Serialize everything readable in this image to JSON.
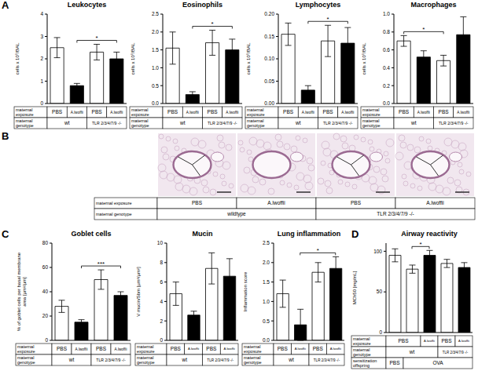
{
  "chart_data": [
    {
      "type": "bar",
      "panel": "A",
      "title": "Leukocytes",
      "ylabel": "cells x 10⁵/BAL",
      "categories": [
        null,
        null,
        null,
        null
      ],
      "values": [
        2.5,
        0.8,
        2.3,
        2.0
      ],
      "errors": [
        0.45,
        0.1,
        0.35,
        0.3
      ],
      "colors": [
        "#ffffff",
        "#000000",
        "#ffffff",
        "#000000"
      ],
      "ylim": [
        0,
        4
      ],
      "yticks": [
        0,
        1,
        2,
        3,
        4
      ],
      "significance": [
        {
          "from": 1,
          "to": 3,
          "label": "*"
        }
      ],
      "table": [
        {
          "label": "maternal exposure",
          "cells": [
            {
              "text": "PBS",
              "span": 1
            },
            {
              "text": "A.lwoffii",
              "span": 1
            },
            {
              "text": "PBS",
              "span": 1
            },
            {
              "text": "A.lwoffii",
              "span": 1
            }
          ]
        },
        {
          "label": "maternal genotype",
          "cells": [
            {
              "text": "wt",
              "span": 2
            },
            {
              "text": "TLR 2/3/4/7/9 -/-",
              "span": 2
            }
          ]
        }
      ]
    },
    {
      "type": "bar",
      "title": "Eosinophils",
      "ylabel": "cells x 10⁵/BAL",
      "categories": [
        null,
        null,
        null,
        null
      ],
      "values": [
        1.55,
        0.25,
        1.7,
        1.5
      ],
      "errors": [
        0.45,
        0.08,
        0.35,
        0.3
      ],
      "colors": [
        "#ffffff",
        "#000000",
        "#ffffff",
        "#000000"
      ],
      "ylim": [
        0,
        2.5
      ],
      "yticks": [
        {
          "value": 0,
          "label": "0.0"
        },
        0.5,
        {
          "value": 1,
          "label": "1.0"
        },
        1.5,
        {
          "value": 2,
          "label": "2.0"
        },
        2.5
      ],
      "significance": [
        {
          "from": 1,
          "to": 3,
          "label": "*"
        }
      ],
      "table": [
        {
          "label": "maternal exposure",
          "cells": [
            {
              "text": "PBS",
              "span": 1
            },
            {
              "text": "A.lwoffii",
              "span": 1
            },
            {
              "text": "PBS",
              "span": 1
            },
            {
              "text": "A.lwoffii",
              "span": 1
            }
          ]
        },
        {
          "label": "maternal genotype",
          "cells": [
            {
              "text": "wt",
              "span": 2
            },
            {
              "text": "TLR 2/3/4/7/9 -/-",
              "span": 2
            }
          ]
        }
      ]
    },
    {
      "type": "bar",
      "title": "Lymphocytes",
      "ylabel": "cells x 10⁵/BAL",
      "categories": [
        null,
        null,
        null,
        null
      ],
      "values": [
        0.155,
        0.03,
        0.14,
        0.135
      ],
      "errors": [
        0.025,
        0.01,
        0.035,
        0.035
      ],
      "colors": [
        "#ffffff",
        "#000000",
        "#ffffff",
        "#000000"
      ],
      "ylim": [
        0,
        0.2
      ],
      "yticks": [
        {
          "value": 0,
          "label": "0.00"
        },
        0.05,
        {
          "value": 0.1,
          "label": "0.10"
        },
        0.15,
        {
          "value": 0.2,
          "label": "0.20"
        }
      ],
      "significance": [
        {
          "from": 1,
          "to": 3,
          "label": "*"
        }
      ],
      "table": [
        {
          "label": "maternal exposure",
          "cells": [
            {
              "text": "PBS",
              "span": 1
            },
            {
              "text": "A.lwoffii",
              "span": 1
            },
            {
              "text": "PBS",
              "span": 1
            },
            {
              "text": "A.lwoffii",
              "span": 1
            }
          ]
        },
        {
          "label": "maternal genotype",
          "cells": [
            {
              "text": "wt",
              "span": 2
            },
            {
              "text": "TLR 2/3/4/7/9 -/-",
              "span": 2
            }
          ]
        }
      ]
    },
    {
      "type": "bar",
      "title": "Macrophages",
      "ylabel": "cells x 10⁵/BAL",
      "categories": [
        null,
        null,
        null,
        null
      ],
      "values": [
        0.7,
        0.52,
        0.48,
        0.77
      ],
      "errors": [
        0.06,
        0.07,
        0.06,
        0.2
      ],
      "colors": [
        "#ffffff",
        "#000000",
        "#ffffff",
        "#000000"
      ],
      "ylim": [
        0,
        1
      ],
      "yticks": [
        {
          "value": 0,
          "label": "0.0"
        },
        0.2,
        0.4,
        0.6,
        0.8,
        {
          "value": 1,
          "label": "1.0"
        }
      ],
      "significance": [
        {
          "from": 0,
          "to": 2,
          "label": "*"
        }
      ],
      "table": [
        {
          "label": "maternal exposure",
          "cells": [
            {
              "text": "PBS",
              "span": 1
            },
            {
              "text": "A.lwoffii",
              "span": 1
            },
            {
              "text": "PBS",
              "span": 1
            },
            {
              "text": "A.lwoffii",
              "span": 1
            }
          ]
        },
        {
          "label": "maternal genotype",
          "cells": [
            {
              "text": "wt",
              "span": 2
            },
            {
              "text": "TLR 2/3/4/7/9 -/-",
              "span": 2
            }
          ]
        }
      ]
    },
    {
      "type": "bar",
      "panel": "C",
      "title": "Goblet cells",
      "ylabel": "% of goblet cells per basal membrane area [µm²/µm]",
      "categories": [
        null,
        null,
        null,
        null
      ],
      "values": [
        28,
        15,
        50,
        37
      ],
      "errors": [
        5,
        2,
        8,
        3
      ],
      "colors": [
        "#ffffff",
        "#000000",
        "#ffffff",
        "#000000"
      ],
      "ylim": [
        0,
        80
      ],
      "yticks": [
        0,
        20,
        40,
        60,
        80
      ],
      "significance": [
        {
          "from": 1,
          "to": 3,
          "label": "***"
        }
      ],
      "table": [
        {
          "label": "maternal exposure",
          "cells": [
            {
              "text": "PBS",
              "span": 1
            },
            {
              "text": "A.lwoffii",
              "span": 1
            },
            {
              "text": "PBS",
              "span": 1
            },
            {
              "text": "A.lwoffii",
              "span": 1
            }
          ]
        },
        {
          "label": "maternal genotype",
          "cells": [
            {
              "text": "wt",
              "span": 2
            },
            {
              "text": "TLR 2/3/4/7/9 -/-",
              "span": 2
            }
          ]
        }
      ]
    },
    {
      "type": "bar",
      "title": "Mucin",
      "ylabel": "V mucin/Sbm [µm³/µm²]",
      "categories": [
        null,
        null,
        null,
        null
      ],
      "values": [
        4.8,
        2.6,
        7.4,
        6.6
      ],
      "errors": [
        1.2,
        0.4,
        1.6,
        1.8
      ],
      "colors": [
        "#ffffff",
        "#000000",
        "#ffffff",
        "#000000"
      ],
      "ylim": [
        0,
        10
      ],
      "yticks": [
        0,
        2,
        4,
        6,
        8,
        10
      ],
      "significance": [],
      "table": [
        {
          "label": "maternal exposure",
          "cells": [
            {
              "text": "PBS",
              "span": 1
            },
            {
              "text": "A.lwoffii",
              "span": 1
            },
            {
              "text": "PBS",
              "span": 1
            },
            {
              "text": "A.lwoffii",
              "span": 1
            }
          ]
        },
        {
          "label": "maternal genotype",
          "cells": [
            {
              "text": "wt",
              "span": 2
            },
            {
              "text": "TLR 2/3/4/7/9 -/-",
              "span": 2
            }
          ]
        }
      ]
    },
    {
      "type": "bar",
      "title": "Lung inflammation",
      "ylabel": "Inflammation score",
      "categories": [
        null,
        null,
        null,
        null
      ],
      "values": [
        1.2,
        0.4,
        1.75,
        1.85
      ],
      "errors": [
        0.35,
        0.4,
        0.25,
        0.3
      ],
      "colors": [
        "#ffffff",
        "#000000",
        "#ffffff",
        "#000000"
      ],
      "ylim": [
        0,
        2.5
      ],
      "yticks": [
        {
          "value": 0,
          "label": "0.0"
        },
        0.5,
        {
          "value": 1,
          "label": "1.0"
        },
        1.5,
        {
          "value": 2,
          "label": "2.0"
        },
        2.5
      ],
      "significance": [
        {
          "from": 1,
          "to": 3,
          "label": "*"
        }
      ],
      "table": [
        {
          "label": "maternal exposure",
          "cells": [
            {
              "text": "PBS",
              "span": 1
            },
            {
              "text": "A.lwoffii",
              "span": 1
            },
            {
              "text": "PBS",
              "span": 1
            },
            {
              "text": "A.lwoffii",
              "span": 1
            }
          ]
        },
        {
          "label": "maternal genotype",
          "cells": [
            {
              "text": "wt",
              "span": 2
            },
            {
              "text": "TLR 2/3/4/7/9 -/-",
              "span": 2
            }
          ]
        }
      ]
    },
    {
      "type": "bar",
      "panel": "D",
      "title": "Airway reactivity",
      "ylabel": "MCh50 [mg/mL]",
      "categories": [
        null,
        null,
        null,
        null,
        null
      ],
      "values": [
        95,
        78,
        95,
        85,
        80
      ],
      "errors": [
        8,
        5,
        6,
        5,
        6
      ],
      "colors": [
        "#ffffff",
        "#ffffff",
        "#000000",
        "#ffffff",
        "#000000"
      ],
      "ylim": [
        0,
        110
      ],
      "yticks": [
        0,
        50,
        100
      ],
      "significance": [
        {
          "from": 1,
          "to": 2,
          "label": "*"
        }
      ],
      "table": [
        {
          "label": "maternal exposure",
          "cells": [
            {
              "text": "PBS",
              "span": 2
            },
            {
              "text": "A.lwoffii",
              "span": 1
            },
            {
              "text": "PBS",
              "span": 1
            },
            {
              "text": "A.lwoffii",
              "span": 1
            }
          ]
        },
        {
          "label": "maternal genotype",
          "cells": [
            {
              "text": "wt",
              "span": 3
            },
            {
              "text": "TLR 2/3/4/7/9 -/-",
              "span": 2
            }
          ]
        },
        {
          "label": "sensitization offspring",
          "cells": [
            {
              "text": "PBS",
              "span": 1
            },
            {
              "text": "OVA",
              "span": 4
            }
          ]
        }
      ]
    }
  ],
  "panel_B": {
    "letter": "B",
    "table": [
      {
        "label": "maternal exposure",
        "cells": [
          {
            "text": "PBS",
            "span": 1
          },
          {
            "text": "A.lwoffii",
            "span": 1
          },
          {
            "text": "PBS",
            "span": 1
          },
          {
            "text": "A.lwoffii",
            "span": 1
          }
        ]
      },
      {
        "label": "maternal genotype",
        "cells": [
          {
            "text": "wildtype",
            "span": 2
          },
          {
            "text": "TLR 2/3/4/7/9 -/-",
            "span": 2
          }
        ]
      }
    ]
  }
}
